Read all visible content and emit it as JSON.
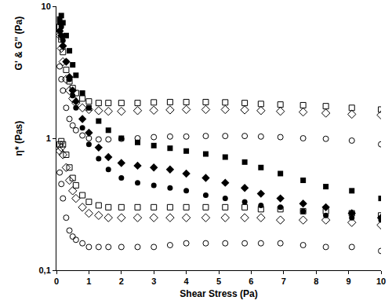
{
  "chart_data": {
    "type": "scatter",
    "xlabel": "Shear Stress (Pa)",
    "ylabel": "G' & G'' (Pa)",
    "annotations": [
      {
        "text": "η* (Pas)"
      }
    ],
    "log": "y",
    "grid": false,
    "xlim": [
      0,
      10
    ],
    "xticks": [
      0,
      1,
      2,
      3,
      4,
      5,
      6,
      7,
      8,
      9,
      10
    ],
    "ylim": [
      0.1,
      10
    ],
    "yticks": [
      {
        "value": 0.1,
        "label": "0,1"
      },
      1,
      10
    ],
    "x": [
      0.1,
      0.15,
      0.2,
      0.3,
      0.4,
      0.5,
      0.6,
      0.8,
      1.0,
      1.3,
      1.6,
      2.0,
      2.5,
      3.0,
      3.5,
      4.0,
      4.6,
      5.2,
      5.8,
      6.3,
      6.9,
      7.6,
      8.3,
      9.1,
      10
    ],
    "series": [
      {
        "color": "#000000",
        "marker": "square-open",
        "line_style": "none",
        "values": [
          7.0,
          5.6,
          4.5,
          3.3,
          2.7,
          2.4,
          2.2,
          2.0,
          1.9,
          1.85,
          1.85,
          1.85,
          1.85,
          1.87,
          1.88,
          1.88,
          1.88,
          1.87,
          1.85,
          1.82,
          1.8,
          1.78,
          1.75,
          1.7,
          1.65
        ]
      },
      {
        "color": "#000000",
        "marker": "diamond-open",
        "line_style": "none",
        "values": [
          6.0,
          4.8,
          3.8,
          2.8,
          2.3,
          2.0,
          1.85,
          1.7,
          1.65,
          1.62,
          1.6,
          1.6,
          1.62,
          1.63,
          1.64,
          1.65,
          1.65,
          1.65,
          1.64,
          1.62,
          1.6,
          1.58,
          1.55,
          1.52,
          1.5
        ]
      },
      {
        "color": "#000000",
        "marker": "circle-open",
        "line_style": "none",
        "values": [
          3.5,
          2.8,
          2.3,
          1.7,
          1.4,
          1.25,
          1.15,
          1.05,
          1.0,
          0.98,
          0.98,
          0.99,
          1.0,
          1.02,
          1.03,
          1.03,
          1.04,
          1.04,
          1.04,
          1.03,
          1.02,
          1.0,
          0.99,
          0.96,
          0.9
        ]
      },
      {
        "color": "#000000",
        "marker": "square",
        "line_style": "none",
        "values": [
          8.0,
          8.5,
          7.5,
          6.0,
          4.6,
          3.6,
          3.0,
          2.2,
          1.7,
          1.35,
          1.15,
          1.0,
          0.93,
          0.88,
          0.84,
          0.8,
          0.76,
          0.72,
          0.66,
          0.6,
          0.54,
          0.48,
          0.43,
          0.4,
          0.35
        ]
      },
      {
        "color": "#000000",
        "marker": "diamond",
        "line_style": "none",
        "values": [
          6.5,
          6.0,
          5.0,
          3.8,
          2.9,
          2.3,
          1.9,
          1.4,
          1.1,
          0.85,
          0.72,
          0.65,
          0.62,
          0.6,
          0.58,
          0.54,
          0.5,
          0.46,
          0.42,
          0.38,
          0.35,
          0.32,
          0.3,
          0.27,
          0.25
        ]
      },
      {
        "color": "#000000",
        "marker": "circle",
        "line_style": "none",
        "values": [
          7.5,
          7.0,
          5.5,
          3.8,
          2.8,
          2.1,
          1.7,
          1.2,
          0.9,
          0.7,
          0.58,
          0.5,
          0.46,
          0.44,
          0.42,
          0.4,
          0.37,
          0.35,
          0.33,
          0.31,
          0.3,
          0.28,
          0.26,
          0.25,
          0.24
        ]
      },
      {
        "color": "#000000",
        "marker": "square-open",
        "line_style": "none",
        "values": [
          0.9,
          0.95,
          0.9,
          0.75,
          0.6,
          0.5,
          0.44,
          0.37,
          0.33,
          0.31,
          0.3,
          0.3,
          0.3,
          0.3,
          0.3,
          0.3,
          0.3,
          0.3,
          0.3,
          0.29,
          0.29,
          0.28,
          0.28,
          0.27,
          0.26
        ]
      },
      {
        "color": "#000000",
        "marker": "diamond-open",
        "line_style": "none",
        "values": [
          0.8,
          0.85,
          0.75,
          0.6,
          0.48,
          0.4,
          0.35,
          0.3,
          0.27,
          0.26,
          0.25,
          0.25,
          0.25,
          0.25,
          0.25,
          0.25,
          0.25,
          0.25,
          0.25,
          0.25,
          0.24,
          0.24,
          0.24,
          0.23,
          0.22
        ]
      },
      {
        "color": "#000000",
        "marker": "circle-open",
        "line_style": "none",
        "values": [
          0.55,
          0.45,
          0.35,
          0.25,
          0.2,
          0.18,
          0.17,
          0.16,
          0.15,
          0.15,
          0.15,
          0.15,
          0.15,
          0.15,
          0.155,
          0.16,
          0.16,
          0.16,
          0.16,
          0.16,
          0.16,
          0.155,
          0.15,
          0.15,
          0.14
        ]
      }
    ]
  }
}
